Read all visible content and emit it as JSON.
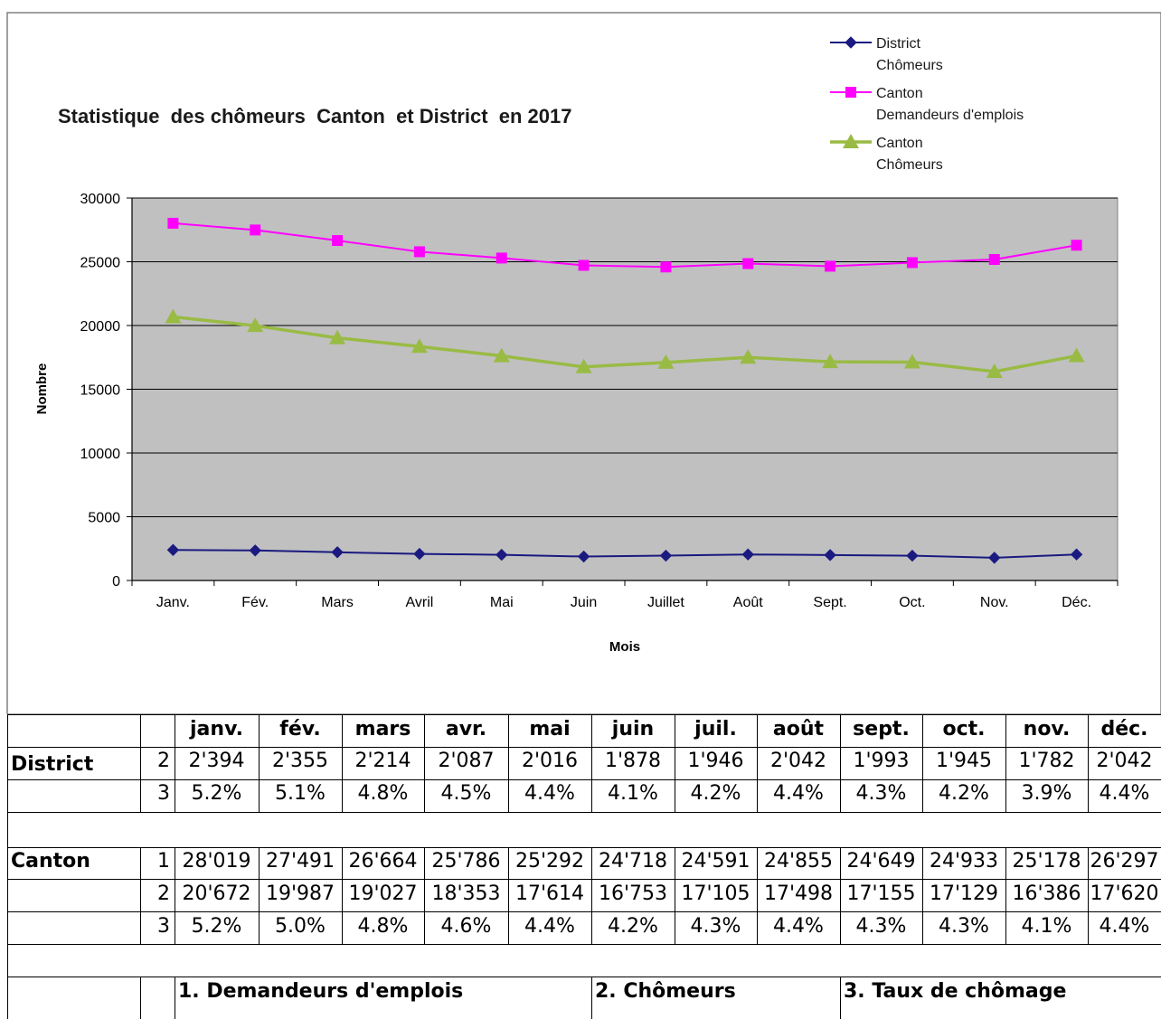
{
  "chart_data": {
    "type": "line",
    "title": "Statistique  des chômeurs  Canton  et District  en 2017",
    "xlabel": "Mois",
    "ylabel": "Nombre",
    "categories": [
      "Janv.",
      "Fév.",
      "Mars",
      "Avril",
      "Mai",
      "Juin",
      "Juillet",
      "Août",
      "Sept.",
      "Oct.",
      "Nov.",
      "Déc."
    ],
    "ylim": [
      0,
      30000
    ],
    "yticks": [
      "0",
      "5000",
      "10000",
      "15000",
      "20000",
      "25000",
      "30000"
    ],
    "grid": true,
    "legend_position": "top-right",
    "plot_background": "#c0c0c0",
    "series": [
      {
        "name_lines": [
          "District",
          "Chômeurs"
        ],
        "color": "#1a1a80",
        "marker": "diamond",
        "values": [
          2394,
          2355,
          2214,
          2087,
          2016,
          1878,
          1946,
          2042,
          1993,
          1945,
          1782,
          2042
        ]
      },
      {
        "name_lines": [
          "Canton",
          "Demandeurs d'emplois"
        ],
        "color": "#ff00ff",
        "marker": "square",
        "values": [
          28019,
          27491,
          26664,
          25786,
          25292,
          24718,
          24591,
          24855,
          24649,
          24933,
          25178,
          26297
        ]
      },
      {
        "name_lines": [
          "Canton",
          "Chômeurs"
        ],
        "color": "#99bb44",
        "marker": "triangle",
        "values": [
          20672,
          19987,
          19027,
          18353,
          17614,
          16753,
          17105,
          17498,
          17155,
          17129,
          16386,
          17620
        ]
      }
    ]
  },
  "table": {
    "months": [
      "janv.",
      "fév.",
      "mars",
      "avr.",
      "mai",
      "juin",
      "juil.",
      "août",
      "sept.",
      "oct.",
      "nov.",
      "déc."
    ],
    "district_label": "District",
    "district_rows": [
      {
        "idx": "2",
        "values": [
          "2'394",
          "2'355",
          "2'214",
          "2'087",
          "2'016",
          "1'878",
          "1'946",
          "2'042",
          "1'993",
          "1'945",
          "1'782",
          "2'042"
        ]
      },
      {
        "idx": "3",
        "values": [
          "5.2%",
          "5.1%",
          "4.8%",
          "4.5%",
          "4.4%",
          "4.1%",
          "4.2%",
          "4.4%",
          "4.3%",
          "4.2%",
          "3.9%",
          "4.4%"
        ]
      }
    ],
    "canton_label": "Canton",
    "canton_rows": [
      {
        "idx": "1",
        "values": [
          "28'019",
          "27'491",
          "26'664",
          "25'786",
          "25'292",
          "24'718",
          "24'591",
          "24'855",
          "24'649",
          "24'933",
          "25'178",
          "26'297"
        ]
      },
      {
        "idx": "2",
        "values": [
          "20'672",
          "19'987",
          "19'027",
          "18'353",
          "17'614",
          "16'753",
          "17'105",
          "17'498",
          "17'155",
          "17'129",
          "16'386",
          "17'620"
        ]
      },
      {
        "idx": "3",
        "values": [
          "5.2%",
          "5.0%",
          "4.8%",
          "4.6%",
          "4.4%",
          "4.2%",
          "4.3%",
          "4.4%",
          "4.3%",
          "4.3%",
          "4.1%",
          "4.4%"
        ]
      }
    ],
    "footnotes": [
      "1. Demandeurs d'emplois",
      "2. Chômeurs",
      "3. Taux de chômage"
    ]
  }
}
